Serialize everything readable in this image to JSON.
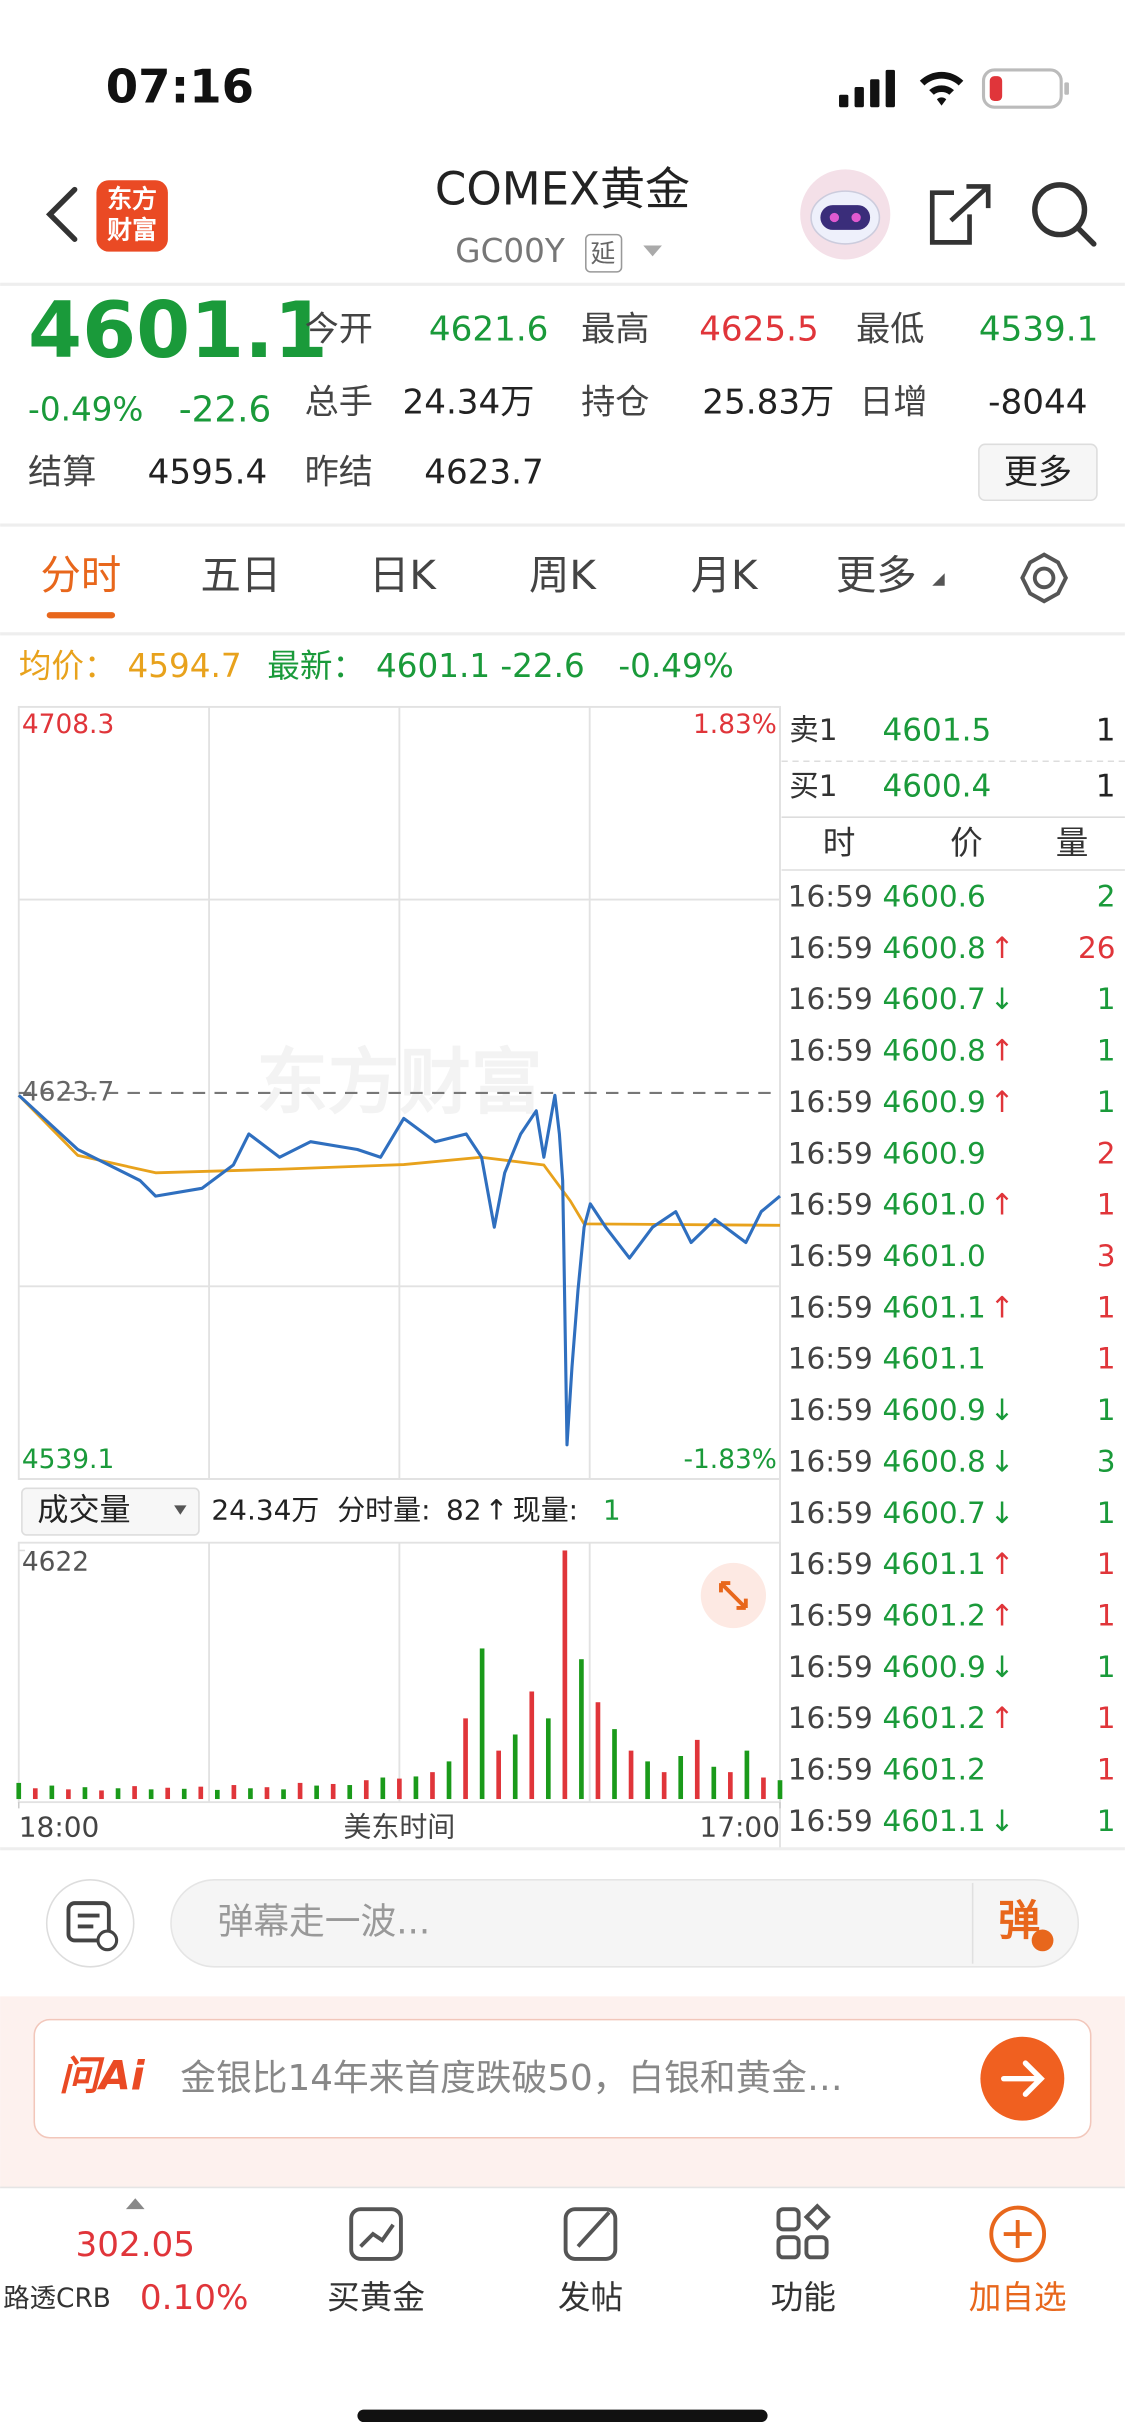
{
  "status_bar": {
    "time": "07:16"
  },
  "header": {
    "logo": [
      "东方",
      "财富"
    ],
    "title": "COMEX黄金",
    "code": "GC00Y",
    "delay": "延"
  },
  "quote": {
    "price": "4601.1",
    "change_pct": "-0.49%",
    "change": "-22.6",
    "fields": [
      {
        "label": "今开",
        "value": "4621.6",
        "color": "#1a9a3a"
      },
      {
        "label": "最高",
        "value": "4625.5",
        "color": "#e0353a"
      },
      {
        "label": "最低",
        "value": "4539.1",
        "color": "#1a9a3a"
      },
      {
        "label": "总手",
        "value": "24.34万",
        "color": "#222222"
      },
      {
        "label": "持仓",
        "value": "25.83万",
        "color": "#222222"
      },
      {
        "label": "日增",
        "value": "-8044",
        "color": "#222222"
      },
      {
        "label": "结算",
        "value": "4595.4",
        "color": "#222222"
      },
      {
        "label": "昨结",
        "value": "4623.7",
        "color": "#222222"
      }
    ],
    "more": "更多"
  },
  "tabs": {
    "items": [
      "分时",
      "五日",
      "日K",
      "周K",
      "月K",
      "更多"
    ],
    "active": 0
  },
  "summary": {
    "avg": "4594.7",
    "latest": "4601.1",
    "change": "-22.6",
    "change_pct": "-0.49%"
  },
  "chart_data": [
    {
      "type": "line",
      "ylim": [
        4539.1,
        4708.3
      ],
      "yticks": [
        4708.3,
        4539.1
      ],
      "y2lim": [
        -1.83,
        1.83
      ],
      "y2ticks": [
        {
          "value": 1.83,
          "label": "1.83%"
        },
        {
          "value": -1.83,
          "label": "-1.83%"
        }
      ],
      "reference_line": 4623.7,
      "xlim": [
        0,
        1380
      ],
      "xticks": [
        {
          "value": 0,
          "label": "18:00"
        },
        {
          "value": 1380,
          "label": "17:00"
        }
      ],
      "xlabel": "美东时间",
      "watermark": "东方财富",
      "grid": true,
      "series": [
        {
          "name": "最新：",
          "color": "#2f6fbf",
          "x": [
            0,
            107,
            220,
            248,
            332,
            389,
            417,
            473,
            529,
            614,
            656,
            698,
            755,
            811,
            839,
            862,
            881,
            910,
            938,
            952,
            972,
            980,
            986,
            988,
            994,
            1003,
            1014,
            1025,
            1036,
            1064,
            1107,
            1149,
            1191,
            1219,
            1262,
            1318,
            1346,
            1380
          ],
          "values": [
            4623.2,
            4611.3,
            4604.5,
            4601.1,
            4602.8,
            4607.9,
            4614.7,
            4609.6,
            4613.0,
            4611.3,
            4609.6,
            4618.1,
            4613.0,
            4614.7,
            4609.6,
            4594.3,
            4606.2,
            4614.7,
            4619.8,
            4609.6,
            4623.2,
            4614.7,
            4604.5,
            4590.9,
            4546.6,
            4563.6,
            4580.6,
            4594.3,
            4599.4,
            4594.3,
            4587.5,
            4594.3,
            4597.7,
            4590.9,
            4596.0,
            4590.9,
            4597.7,
            4601.1
          ]
        },
        {
          "name": "均价：",
          "color": "#e8a21c",
          "x": [
            0,
            107,
            248,
            473,
            698,
            838,
            952,
            1000,
            1025,
            1380
          ],
          "values": [
            4623.2,
            4610.0,
            4606.2,
            4607.0,
            4608.0,
            4609.6,
            4607.9,
            4600.0,
            4595.0,
            4594.7
          ]
        }
      ]
    },
    {
      "type": "bar",
      "title": "成交量",
      "ylim": [
        0,
        4622
      ],
      "yticks": [
        4622
      ],
      "xlim": [
        0,
        1380
      ],
      "colors": [
        "#1a9a1a",
        "#e0353a"
      ],
      "x": [
        0,
        30,
        60,
        90,
        120,
        150,
        180,
        210,
        240,
        270,
        300,
        330,
        360,
        390,
        420,
        450,
        480,
        510,
        540,
        570,
        600,
        630,
        660,
        690,
        720,
        750,
        780,
        810,
        840,
        870,
        900,
        930,
        960,
        990,
        1020,
        1050,
        1080,
        1110,
        1140,
        1170,
        1200,
        1230,
        1260,
        1290,
        1320,
        1350,
        1380
      ],
      "values": [
        300,
        200,
        250,
        180,
        220,
        160,
        200,
        240,
        180,
        210,
        190,
        230,
        170,
        260,
        200,
        220,
        180,
        300,
        250,
        280,
        260,
        350,
        400,
        380,
        420,
        500,
        700,
        1500,
        2800,
        900,
        1200,
        2000,
        1500,
        4622,
        2600,
        1800,
        1300,
        900,
        700,
        500,
        800,
        1100,
        600,
        500,
        900,
        400,
        350
      ]
    }
  ],
  "volume_header": {
    "total": "24.34万",
    "minute_label": "分时量:",
    "minute": "82",
    "arrow": "↑",
    "current_label": "现量:",
    "current": "1"
  },
  "order_book": [
    {
      "label": "卖1",
      "price": "4601.5",
      "volume": "1"
    },
    {
      "label": "买1",
      "price": "4600.4",
      "volume": "1"
    }
  ],
  "trades": {
    "columns": [
      "时",
      "价",
      "量"
    ],
    "arrow_colors": {
      "↑": "#e0353a",
      "↓": "#1a9a3a"
    },
    "rows": [
      {
        "time": "16:59",
        "price": "4600.6",
        "volume": "2",
        "color": "#1a9a3a"
      },
      {
        "time": "16:59",
        "price": "4600.8",
        "arrow": "↑",
        "volume": "26",
        "color": "#e0353a"
      },
      {
        "time": "16:59",
        "price": "4600.7",
        "arrow": "↓",
        "volume": "1",
        "color": "#1a9a3a"
      },
      {
        "time": "16:59",
        "price": "4600.8",
        "arrow": "↑",
        "volume": "1",
        "color": "#1a9a3a"
      },
      {
        "time": "16:59",
        "price": "4600.9",
        "arrow": "↑",
        "volume": "1",
        "color": "#1a9a3a"
      },
      {
        "time": "16:59",
        "price": "4600.9",
        "volume": "2",
        "color": "#e0353a"
      },
      {
        "time": "16:59",
        "price": "4601.0",
        "arrow": "↑",
        "volume": "1",
        "color": "#e0353a"
      },
      {
        "time": "16:59",
        "price": "4601.0",
        "volume": "3",
        "color": "#e0353a"
      },
      {
        "time": "16:59",
        "price": "4601.1",
        "arrow": "↑",
        "volume": "1",
        "color": "#e0353a"
      },
      {
        "time": "16:59",
        "price": "4601.1",
        "volume": "1",
        "color": "#e0353a"
      },
      {
        "time": "16:59",
        "price": "4600.9",
        "arrow": "↓",
        "volume": "1",
        "color": "#1a9a3a"
      },
      {
        "time": "16:59",
        "price": "4600.8",
        "arrow": "↓",
        "volume": "3",
        "color": "#1a9a3a"
      },
      {
        "time": "16:59",
        "price": "4600.7",
        "arrow": "↓",
        "volume": "1",
        "color": "#1a9a3a"
      },
      {
        "time": "16:59",
        "price": "4601.1",
        "arrow": "↑",
        "volume": "1",
        "color": "#e0353a"
      },
      {
        "time": "16:59",
        "price": "4601.2",
        "arrow": "↑",
        "volume": "1",
        "color": "#e0353a"
      },
      {
        "time": "16:59",
        "price": "4600.9",
        "arrow": "↓",
        "volume": "1",
        "color": "#1a9a3a"
      },
      {
        "time": "16:59",
        "price": "4601.2",
        "arrow": "↑",
        "volume": "1",
        "color": "#e0353a"
      },
      {
        "time": "16:59",
        "price": "4601.2",
        "volume": "1",
        "color": "#e0353a"
      },
      {
        "time": "16:59",
        "price": "4601.1",
        "arrow": "↓",
        "volume": "1",
        "color": "#1a9a3a"
      }
    ]
  },
  "comment": {
    "placeholder": "弹幕走一波...",
    "button": "弹"
  },
  "ai_banner": {
    "logo": "问Ai",
    "text": "金银比14年来首度跌破50，白银和黄金…"
  },
  "tab_bar": {
    "index": {
      "value": "302.05",
      "name": "路透CRB",
      "change": "0.10%"
    },
    "items": [
      "买黄金",
      "发帖",
      "功能",
      "加自选"
    ]
  }
}
